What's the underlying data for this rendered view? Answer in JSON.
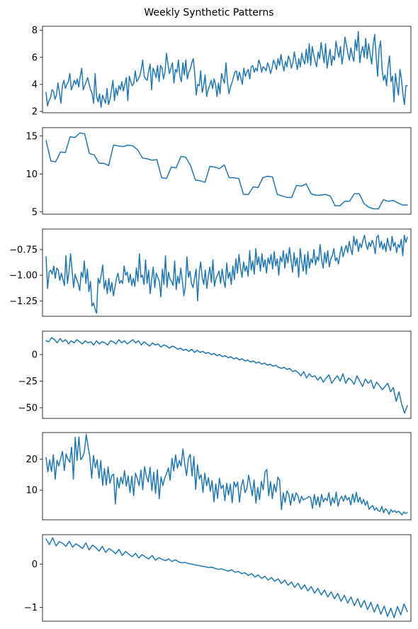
{
  "figure": {
    "title": "Weekly Synthetic Patterns"
  },
  "chart_data": [
    {
      "type": "line",
      "title": "",
      "xlabel": "",
      "ylabel": "",
      "xlim": [
        0,
        260
      ],
      "ylim": [
        1.9,
        8.3
      ],
      "yticks": [
        2,
        4,
        6,
        8
      ],
      "ytick_labels": [
        "2",
        "4",
        "6",
        "8"
      ],
      "grid": false,
      "color": "#1f77b4",
      "y": [
        3.4,
        2.4,
        2.8,
        3.0,
        3.6,
        3.5,
        2.9,
        3.2,
        4.1,
        3.4,
        2.6,
        3.9,
        4.3,
        3.7,
        4.0,
        4.2,
        4.8,
        3.6,
        3.9,
        4.3,
        4.0,
        4.4,
        3.8,
        4.6,
        5.2,
        3.6,
        3.9,
        4.2,
        4.5,
        4.0,
        3.6,
        3.3,
        2.6,
        4.8,
        3.1,
        2.7,
        3.3,
        2.3,
        3.2,
        2.9,
        2.6,
        3.7,
        2.5,
        2.9,
        3.6,
        4.3,
        2.8,
        3.7,
        3.2,
        3.9,
        3.6,
        4.2,
        3.5,
        4.0,
        4.5,
        2.8,
        4.6,
        4.2,
        3.9,
        4.1,
        5.0,
        4.2,
        4.4,
        4.6,
        5.1,
        5.8,
        4.6,
        4.4,
        4.3,
        5.0,
        5.5,
        3.6,
        5.2,
        4.9,
        4.5,
        5.4,
        4.2,
        5.4,
        5.2,
        4.4,
        4.9,
        6.3,
        5.5,
        4.8,
        5.2,
        5.6,
        4.1,
        5.1,
        4.9,
        5.8,
        4.6,
        4.2,
        5.6,
        4.7,
        5.8,
        4.4,
        4.9,
        5.1,
        5.6,
        5.9,
        4.8,
        3.2,
        4.0,
        3.9,
        5.0,
        3.4,
        3.9,
        4.7,
        3.1,
        3.6,
        3.9,
        4.3,
        3.7,
        4.4,
        4.0,
        3.1,
        4.1,
        3.3,
        4.8,
        4.4,
        4.1,
        5.6,
        4.2,
        3.3,
        3.8,
        4.1,
        4.5,
        4.9,
        5.0,
        4.3,
        4.9,
        4.5,
        4.0,
        5.2,
        4.6,
        4.9,
        5.1,
        4.4,
        5.3,
        5.4,
        4.9,
        5.2,
        5.0,
        5.8,
        5.5,
        4.9,
        5.3,
        5.2,
        5.0,
        5.6,
        5.3,
        4.8,
        5.2,
        5.8,
        5.5,
        5.1,
        5.9,
        5.4,
        6.2,
        5.5,
        5.0,
        5.7,
        5.3,
        6.1,
        5.8,
        5.2,
        5.6,
        6.4,
        5.7,
        5.1,
        5.9,
        5.3,
        6.3,
        5.8,
        5.5,
        6.6,
        5.6,
        7.0,
        5.4,
        6.8,
        6.2,
        5.7,
        5.3,
        6.4,
        5.9,
        7.1,
        6.3,
        5.6,
        7.0,
        5.2,
        5.9,
        6.6,
        5.4,
        6.1,
        5.8,
        7.2,
        6.5,
        6.0,
        6.8,
        5.5,
        6.2,
        7.5,
        6.9,
        6.3,
        5.8,
        6.7,
        6.1,
        5.7,
        7.3,
        6.5,
        7.9,
        5.6,
        6.4,
        6.8,
        6.0,
        7.4,
        5.9,
        7.0,
        6.2,
        5.5,
        6.9,
        7.7,
        6.1,
        4.6,
        6.6,
        7.2,
        5.1,
        4.3,
        4.7,
        3.9,
        5.3,
        6.1,
        4.2,
        4.6,
        2.7,
        4.8,
        3.9,
        3.2,
        5.1,
        4.4,
        3.3,
        2.5,
        3.9,
        3.9
      ]
    },
    {
      "type": "line",
      "title": "",
      "xlabel": "",
      "ylabel": "",
      "xlim": [
        0,
        260
      ],
      "ylim": [
        4.7,
        16.1
      ],
      "yticks": [
        5,
        10,
        15
      ],
      "ytick_labels": [
        "5",
        "10",
        "15"
      ],
      "grid": false,
      "color": "#1f77b4",
      "y": [
        14.4,
        11.7,
        11.6,
        12.9,
        12.8,
        14.9,
        14.8,
        15.4,
        15.3,
        12.7,
        12.5,
        11.4,
        11.4,
        11.1,
        13.8,
        13.7,
        13.6,
        13.8,
        13.7,
        13.2,
        12.1,
        12.0,
        11.8,
        11.9,
        9.5,
        9.4,
        10.9,
        10.8,
        12.3,
        12.2,
        11.1,
        9.2,
        9.1,
        8.9,
        11.0,
        10.9,
        10.7,
        11.2,
        9.5,
        9.5,
        9.4,
        7.3,
        7.3,
        8.3,
        8.2,
        9.5,
        9.7,
        9.6,
        7.3,
        7.1,
        6.9,
        6.9,
        8.5,
        8.4,
        8.7,
        7.4,
        7.2,
        7.2,
        7.3,
        7.1,
        5.8,
        5.8,
        6.4,
        6.4,
        7.4,
        7.4,
        6.1,
        5.6,
        5.4,
        5.4,
        6.6,
        6.4,
        6.5,
        6.2,
        5.9,
        5.9
      ]
    },
    {
      "type": "line",
      "title": "",
      "xlabel": "",
      "ylabel": "",
      "xlim": [
        0,
        260
      ],
      "ylim": [
        -1.4,
        -0.55
      ],
      "yticks": [
        -1.25,
        -1.0,
        -0.75
      ],
      "ytick_labels": [
        "−1.25",
        "−1.00",
        "−0.75"
      ],
      "grid": false,
      "color": "#1f77b4",
      "y": [
        -0.82,
        -1.13,
        -0.97,
        -0.95,
        -0.99,
        -0.91,
        -1.03,
        -0.93,
        -0.95,
        -1.05,
        -0.98,
        -1.04,
        -1.1,
        -0.81,
        -1.08,
        -0.96,
        -0.79,
        -0.95,
        -1.12,
        -0.99,
        -1.04,
        -1.08,
        -1.15,
        -0.97,
        -1.02,
        -0.86,
        -1.08,
        -0.94,
        -1.16,
        -1.06,
        -1.3,
        -1.27,
        -1.33,
        -1.37,
        -1.03,
        -1.08,
        -1.0,
        -0.9,
        -1.13,
        -1.05,
        -1.18,
        -1.03,
        -1.16,
        -1.07,
        -1.2,
        -1.12,
        -1.03,
        -0.98,
        -1.08,
        -1.05,
        -1.08,
        -0.91,
        -1.0,
        -0.97,
        -1.07,
        -0.99,
        -1.1,
        -1.03,
        -1.11,
        -0.93,
        -1.06,
        -0.79,
        -1.02,
        -1.0,
        -1.09,
        -0.85,
        -1.08,
        -0.95,
        -1.18,
        -1.04,
        -0.92,
        -1.12,
        -0.98,
        -1.02,
        -1.06,
        -1.21,
        -0.94,
        -1.09,
        -0.81,
        -1.12,
        -0.97,
        -1.04,
        -1.06,
        -1.1,
        -0.86,
        -1.14,
        -1.01,
        -1.08,
        -0.93,
        -1.05,
        -1.2,
        -1.11,
        -0.82,
        -1.02,
        -0.96,
        -1.08,
        -1.12,
        -1.03,
        -0.94,
        -1.25,
        -0.98,
        -0.87,
        -1.02,
        -1.09,
        -0.95,
        -1.13,
        -1.01,
        -0.92,
        -1.07,
        -0.85,
        -1.11,
        -1.03,
        -1.0,
        -0.96,
        -1.08,
        -0.94,
        -1.05,
        -1.12,
        -0.88,
        -1.03,
        -0.97,
        -1.09,
        -0.91,
        -1.04,
        -0.84,
        -0.98,
        -0.8,
        -0.93,
        -1.02,
        -0.87,
        -0.96,
        -0.91,
        -1.01,
        -0.76,
        -0.95,
        -0.86,
        -0.99,
        -0.74,
        -0.9,
        -0.82,
        -0.96,
        -0.79,
        -0.92,
        -0.85,
        -0.98,
        -0.83,
        -0.89,
        -0.8,
        -0.94,
        -0.77,
        -0.91,
        -0.84,
        -1.0,
        -0.82,
        -0.87,
        -0.76,
        -0.93,
        -0.79,
        -0.88,
        -0.73,
        -0.85,
        -0.97,
        -0.78,
        -0.91,
        -0.83,
        -1.02,
        -0.74,
        -0.87,
        -0.96,
        -0.8,
        -0.99,
        -0.77,
        -0.93,
        -0.84,
        -0.88,
        -0.75,
        -0.9,
        -0.82,
        -0.86,
        -0.7,
        -0.85,
        -0.93,
        -0.78,
        -0.88,
        -0.76,
        -0.92,
        -0.84,
        -0.81,
        -0.74,
        -0.86,
        -0.83,
        -0.89,
        -0.79,
        -0.72,
        -0.82,
        -0.76,
        -0.71,
        -0.78,
        -0.67,
        -0.74,
        -0.8,
        -0.62,
        -0.71,
        -0.65,
        -0.77,
        -0.69,
        -0.73,
        -0.66,
        -0.61,
        -0.7,
        -0.75,
        -0.68,
        -0.72,
        -0.66,
        -0.7,
        -0.79,
        -0.63,
        -0.61,
        -0.73,
        -0.67,
        -0.75,
        -0.69,
        -0.77,
        -0.64,
        -0.71,
        -0.76,
        -0.62,
        -0.72,
        -0.68,
        -0.78,
        -0.7,
        -0.73,
        -0.65,
        -0.81,
        -0.61,
        -0.68,
        -0.63
      ]
    },
    {
      "type": "line",
      "title": "",
      "xlabel": "",
      "ylabel": "",
      "xlim": [
        0,
        260
      ],
      "ylim": [
        -60,
        22
      ],
      "yticks": [
        -50,
        -25,
        0
      ],
      "ytick_labels": [
        "−50",
        "−25",
        "0"
      ],
      "grid": false,
      "color": "#1f77b4",
      "y": [
        13,
        12,
        16,
        14,
        11,
        15,
        12,
        14,
        10,
        13,
        11,
        14,
        12,
        10,
        13,
        11,
        12,
        9,
        13,
        10,
        12,
        11,
        9,
        13,
        12,
        10,
        14,
        11,
        13,
        10,
        12,
        14,
        11,
        13,
        9,
        12,
        10,
        8,
        11,
        9,
        10,
        7,
        9,
        8,
        6,
        8,
        7,
        5,
        6,
        4,
        5,
        3,
        5,
        2,
        4,
        2,
        3,
        1,
        2,
        0,
        1,
        -1,
        0,
        -2,
        -1,
        -3,
        -2,
        -4,
        -3,
        -5,
        -4,
        -6,
        -5,
        -7,
        -6,
        -8,
        -7,
        -9,
        -8,
        -10,
        -9,
        -11,
        -10,
        -12,
        -13,
        -12,
        -14,
        -13,
        -16,
        -15,
        -17,
        -20,
        -16,
        -22,
        -18,
        -21,
        -20,
        -24,
        -21,
        -26,
        -22,
        -19,
        -27,
        -23,
        -20,
        -25,
        -18,
        -27,
        -22,
        -24,
        -28,
        -20,
        -25,
        -30,
        -23,
        -27,
        -24,
        -32,
        -26,
        -29,
        -33,
        -30,
        -27,
        -35,
        -31,
        -44,
        -35,
        -47,
        -55,
        -48
      ]
    },
    {
      "type": "line",
      "title": "",
      "xlabel": "",
      "ylabel": "",
      "xlim": [
        0,
        260
      ],
      "ylim": [
        0.4,
        28.6
      ],
      "yticks": [
        10,
        20
      ],
      "ytick_labels": [
        "10",
        "20"
      ],
      "grid": false,
      "color": "#1f77b4",
      "y": [
        20.5,
        15.9,
        19.8,
        16.0,
        21.4,
        13.5,
        19.6,
        17.8,
        20.2,
        22.5,
        16.3,
        21.7,
        20.0,
        19.0,
        23.9,
        13.5,
        27.1,
        19.6,
        27.2,
        19.8,
        20.7,
        22.4,
        28.0,
        24.2,
        20.7,
        13.8,
        21.2,
        17.2,
        19.8,
        13.8,
        19.6,
        11.5,
        17.0,
        11.6,
        17.5,
        12.2,
        14.6,
        15.2,
        5.5,
        14.0,
        10.7,
        14.2,
        12.0,
        16.3,
        11.2,
        14.6,
        9.2,
        14.5,
        8.2,
        15.5,
        13.7,
        11.4,
        16.5,
        10.1,
        17.6,
        14.4,
        12.6,
        17.4,
        9.8,
        15.8,
        8.9,
        16.6,
        7.2,
        14.3,
        11.5,
        13.9,
        15.3,
        17.2,
        13.2,
        20.3,
        16.2,
        21.4,
        17.1,
        19.6,
        17.8,
        23.3,
        18.4,
        14.7,
        20.2,
        21.6,
        14.5,
        20.8,
        10.2,
        18.2,
        13.6,
        15.0,
        9.3,
        15.5,
        11.4,
        14.0,
        9.6,
        13.1,
        6.2,
        12.0,
        7.3,
        13.8,
        10.5,
        11.6,
        6.6,
        12.2,
        8.4,
        11.9,
        5.9,
        12.7,
        11.0,
        12.6,
        6.1,
        11.3,
        13.4,
        9.2,
        10.4,
        14.8,
        11.6,
        8.2,
        13.3,
        5.8,
        10.8,
        6.9,
        12.8,
        10.1,
        15.9,
        16.7,
        8.2,
        12.8,
        7.2,
        11.9,
        9.4,
        14.2,
        13.2,
        3.7,
        9.1,
        6.0,
        9.7,
        8.6,
        5.1,
        8.9,
        6.5,
        9.1,
        8.2,
        5.8,
        8.0,
        6.8,
        7.2,
        7.4,
        8.0,
        7.5,
        4.1,
        8.6,
        5.2,
        7.8,
        4.5,
        8.6,
        6.2,
        7.4,
        6.6,
        9.2,
        5.0,
        7.6,
        5.8,
        9.4,
        4.8,
        7.1,
        8.0,
        6.4,
        8.3,
        6.8,
        7.6,
        5.2,
        8.7,
        6.0,
        9.3,
        6.1,
        7.7,
        5.6,
        7.0,
        5.1,
        6.4,
        3.8,
        4.5,
        5.0,
        3.5,
        4.3,
        3.4,
        3.1,
        4.7,
        2.7,
        4.0,
        3.3,
        2.2,
        3.7,
        2.9,
        3.4,
        2.7,
        3.2,
        2.7,
        2.0,
        2.9,
        2.5,
        2.7
      ]
    },
    {
      "type": "line",
      "title": "",
      "xlabel": "",
      "ylabel": "",
      "xlim": [
        0,
        260
      ],
      "ylim": [
        -1.32,
        0.68
      ],
      "yticks": [
        -1,
        0
      ],
      "ytick_labels": [
        "−1",
        "0"
      ],
      "grid": false,
      "color": "#1f77b4",
      "y": [
        0.58,
        0.45,
        0.61,
        0.42,
        0.52,
        0.48,
        0.41,
        0.53,
        0.39,
        0.47,
        0.42,
        0.36,
        0.49,
        0.33,
        0.44,
        0.38,
        0.3,
        0.41,
        0.27,
        0.36,
        0.31,
        0.24,
        0.34,
        0.2,
        0.29,
        0.23,
        0.17,
        0.25,
        0.14,
        0.22,
        0.16,
        0.12,
        0.2,
        0.09,
        0.15,
        0.11,
        0.08,
        0.12,
        0.06,
        0.1,
        0.05,
        0.03,
        0.04,
        0.01,
        0.0,
        -0.02,
        -0.03,
        -0.05,
        -0.06,
        -0.08,
        -0.07,
        -0.1,
        -0.12,
        -0.11,
        -0.14,
        -0.16,
        -0.13,
        -0.19,
        -0.17,
        -0.22,
        -0.2,
        -0.26,
        -0.22,
        -0.3,
        -0.25,
        -0.33,
        -0.28,
        -0.37,
        -0.31,
        -0.4,
        -0.34,
        -0.45,
        -0.37,
        -0.49,
        -0.41,
        -0.54,
        -0.44,
        -0.58,
        -0.48,
        -0.62,
        -0.52,
        -0.67,
        -0.56,
        -0.71,
        -0.6,
        -0.76,
        -0.64,
        -0.8,
        -0.68,
        -0.86,
        -0.72,
        -0.9,
        -0.76,
        -0.96,
        -0.8,
        -1.0,
        -0.84,
        -1.05,
        -0.88,
        -1.11,
        -0.93,
        -1.16,
        -0.97,
        -1.21,
        -1.02,
        -1.24,
        -0.98,
        -1.17,
        -0.92,
        -1.1
      ]
    }
  ]
}
